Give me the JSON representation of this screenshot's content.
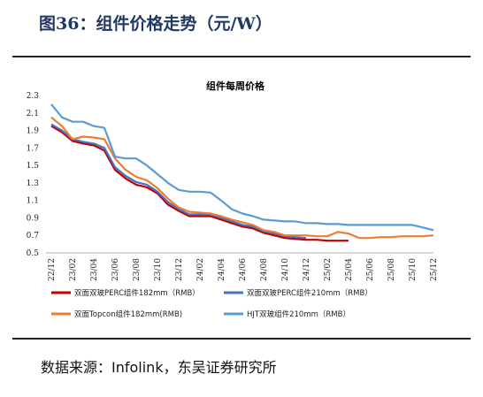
{
  "figure": {
    "title": "图36：组件价格走势（元/W）",
    "source": "数据来源：Infolink，东吴证券研究所"
  },
  "chart_data": {
    "type": "line",
    "title": "组件每周价格",
    "xlabel": "",
    "ylabel": "",
    "x_tick_labels": [
      "22/12",
      "23/02",
      "23/04",
      "23/06",
      "23/08",
      "23/10",
      "23/12",
      "24/02",
      "24/04",
      "24/06",
      "24/08",
      "24/10",
      "24/12",
      "25/02",
      "25/04",
      "25/06",
      "25/08",
      "25/10",
      "25/12"
    ],
    "y_ticks": [
      0.5,
      0.7,
      0.9,
      1.1,
      1.3,
      1.5,
      1.7,
      1.9,
      2.1,
      2.3
    ],
    "ylim": [
      0.5,
      2.3
    ],
    "grid": false,
    "legend_position": "bottom",
    "series": [
      {
        "name": "双面双玻PERC组件182mm（RMB）",
        "color": "#c00000",
        "points": [
          [
            "22/12",
            1.95
          ],
          [
            "23/01",
            1.88
          ],
          [
            "23/02",
            1.78
          ],
          [
            "23/03",
            1.75
          ],
          [
            "23/04",
            1.73
          ],
          [
            "23/05",
            1.67
          ],
          [
            "23/06",
            1.45
          ],
          [
            "23/07",
            1.35
          ],
          [
            "23/08",
            1.28
          ],
          [
            "23/09",
            1.25
          ],
          [
            "23/10",
            1.18
          ],
          [
            "23/11",
            1.05
          ],
          [
            "23/12",
            0.98
          ],
          [
            "24/01",
            0.92
          ],
          [
            "24/02",
            0.92
          ],
          [
            "24/03",
            0.92
          ],
          [
            "24/04",
            0.88
          ],
          [
            "24/05",
            0.84
          ],
          [
            "24/06",
            0.8
          ],
          [
            "24/07",
            0.78
          ],
          [
            "24/08",
            0.73
          ],
          [
            "24/09",
            0.7
          ],
          [
            "24/10",
            0.67
          ],
          [
            "24/11",
            0.66
          ],
          [
            "24/12",
            0.65
          ],
          [
            "25/01",
            0.65
          ],
          [
            "25/02",
            0.64
          ],
          [
            "25/03",
            0.64
          ],
          [
            "25/04",
            0.64
          ]
        ]
      },
      {
        "name": "双面双玻PERC组件210mm（RMB）",
        "color": "#4472c4",
        "points": [
          [
            "22/12",
            1.97
          ],
          [
            "23/01",
            1.9
          ],
          [
            "23/02",
            1.8
          ],
          [
            "23/03",
            1.77
          ],
          [
            "23/04",
            1.75
          ],
          [
            "23/05",
            1.7
          ],
          [
            "23/06",
            1.48
          ],
          [
            "23/07",
            1.38
          ],
          [
            "23/08",
            1.31
          ],
          [
            "23/09",
            1.28
          ],
          [
            "23/10",
            1.2
          ],
          [
            "23/11",
            1.08
          ],
          [
            "23/12",
            1.0
          ],
          [
            "24/01",
            0.94
          ],
          [
            "24/02",
            0.94
          ],
          [
            "24/03",
            0.94
          ],
          [
            "24/04",
            0.9
          ],
          [
            "24/05",
            0.86
          ],
          [
            "24/06",
            0.82
          ],
          [
            "24/07",
            0.8
          ],
          [
            "24/08",
            0.75
          ],
          [
            "24/09",
            0.72
          ],
          [
            "24/10",
            0.69
          ],
          [
            "24/11",
            0.68
          ],
          [
            "24/12",
            0.67
          ]
        ]
      },
      {
        "name": "双面Topcon组件182mm(RMB)",
        "color": "#ed7d31",
        "points": [
          [
            "22/12",
            2.05
          ],
          [
            "23/01",
            1.95
          ],
          [
            "23/02",
            1.8
          ],
          [
            "23/03",
            1.83
          ],
          [
            "23/04",
            1.82
          ],
          [
            "23/05",
            1.8
          ],
          [
            "23/06",
            1.58
          ],
          [
            "23/07",
            1.45
          ],
          [
            "23/08",
            1.37
          ],
          [
            "23/09",
            1.33
          ],
          [
            "23/10",
            1.24
          ],
          [
            "23/11",
            1.12
          ],
          [
            "23/12",
            1.02
          ],
          [
            "24/01",
            0.97
          ],
          [
            "24/02",
            0.96
          ],
          [
            "24/03",
            0.95
          ],
          [
            "24/04",
            0.92
          ],
          [
            "24/05",
            0.88
          ],
          [
            "24/06",
            0.85
          ],
          [
            "24/07",
            0.82
          ],
          [
            "24/08",
            0.76
          ],
          [
            "24/09",
            0.74
          ],
          [
            "24/10",
            0.7
          ],
          [
            "24/11",
            0.7
          ],
          [
            "24/12",
            0.7
          ],
          [
            "25/01",
            0.69
          ],
          [
            "25/02",
            0.69
          ],
          [
            "25/03",
            0.74
          ],
          [
            "25/04",
            0.72
          ],
          [
            "25/05",
            0.67
          ],
          [
            "25/06",
            0.67
          ],
          [
            "25/07",
            0.68
          ],
          [
            "25/08",
            0.68
          ],
          [
            "25/09",
            0.69
          ],
          [
            "25/10",
            0.69
          ],
          [
            "25/11",
            0.69
          ],
          [
            "25/12",
            0.7
          ]
        ]
      },
      {
        "name": "HJT双玻组件210mm（RMB）",
        "color": "#5b9bd5",
        "points": [
          [
            "22/12",
            2.2
          ],
          [
            "23/01",
            2.05
          ],
          [
            "23/02",
            2.0
          ],
          [
            "23/03",
            2.0
          ],
          [
            "23/04",
            1.95
          ],
          [
            "23/05",
            1.93
          ],
          [
            "23/06",
            1.6
          ],
          [
            "23/07",
            1.58
          ],
          [
            "23/08",
            1.58
          ],
          [
            "23/09",
            1.5
          ],
          [
            "23/10",
            1.4
          ],
          [
            "23/11",
            1.3
          ],
          [
            "23/12",
            1.22
          ],
          [
            "24/01",
            1.2
          ],
          [
            "24/02",
            1.2
          ],
          [
            "24/03",
            1.19
          ],
          [
            "24/04",
            1.1
          ],
          [
            "24/05",
            1.0
          ],
          [
            "24/06",
            0.95
          ],
          [
            "24/07",
            0.92
          ],
          [
            "24/08",
            0.88
          ],
          [
            "24/09",
            0.87
          ],
          [
            "24/10",
            0.86
          ],
          [
            "24/11",
            0.86
          ],
          [
            "24/12",
            0.84
          ],
          [
            "25/01",
            0.84
          ],
          [
            "25/02",
            0.83
          ],
          [
            "25/03",
            0.83
          ],
          [
            "25/04",
            0.82
          ],
          [
            "25/05",
            0.82
          ],
          [
            "25/06",
            0.82
          ],
          [
            "25/07",
            0.82
          ],
          [
            "25/08",
            0.82
          ],
          [
            "25/09",
            0.82
          ],
          [
            "25/10",
            0.82
          ],
          [
            "25/11",
            0.79
          ],
          [
            "25/12",
            0.76
          ]
        ]
      }
    ]
  }
}
